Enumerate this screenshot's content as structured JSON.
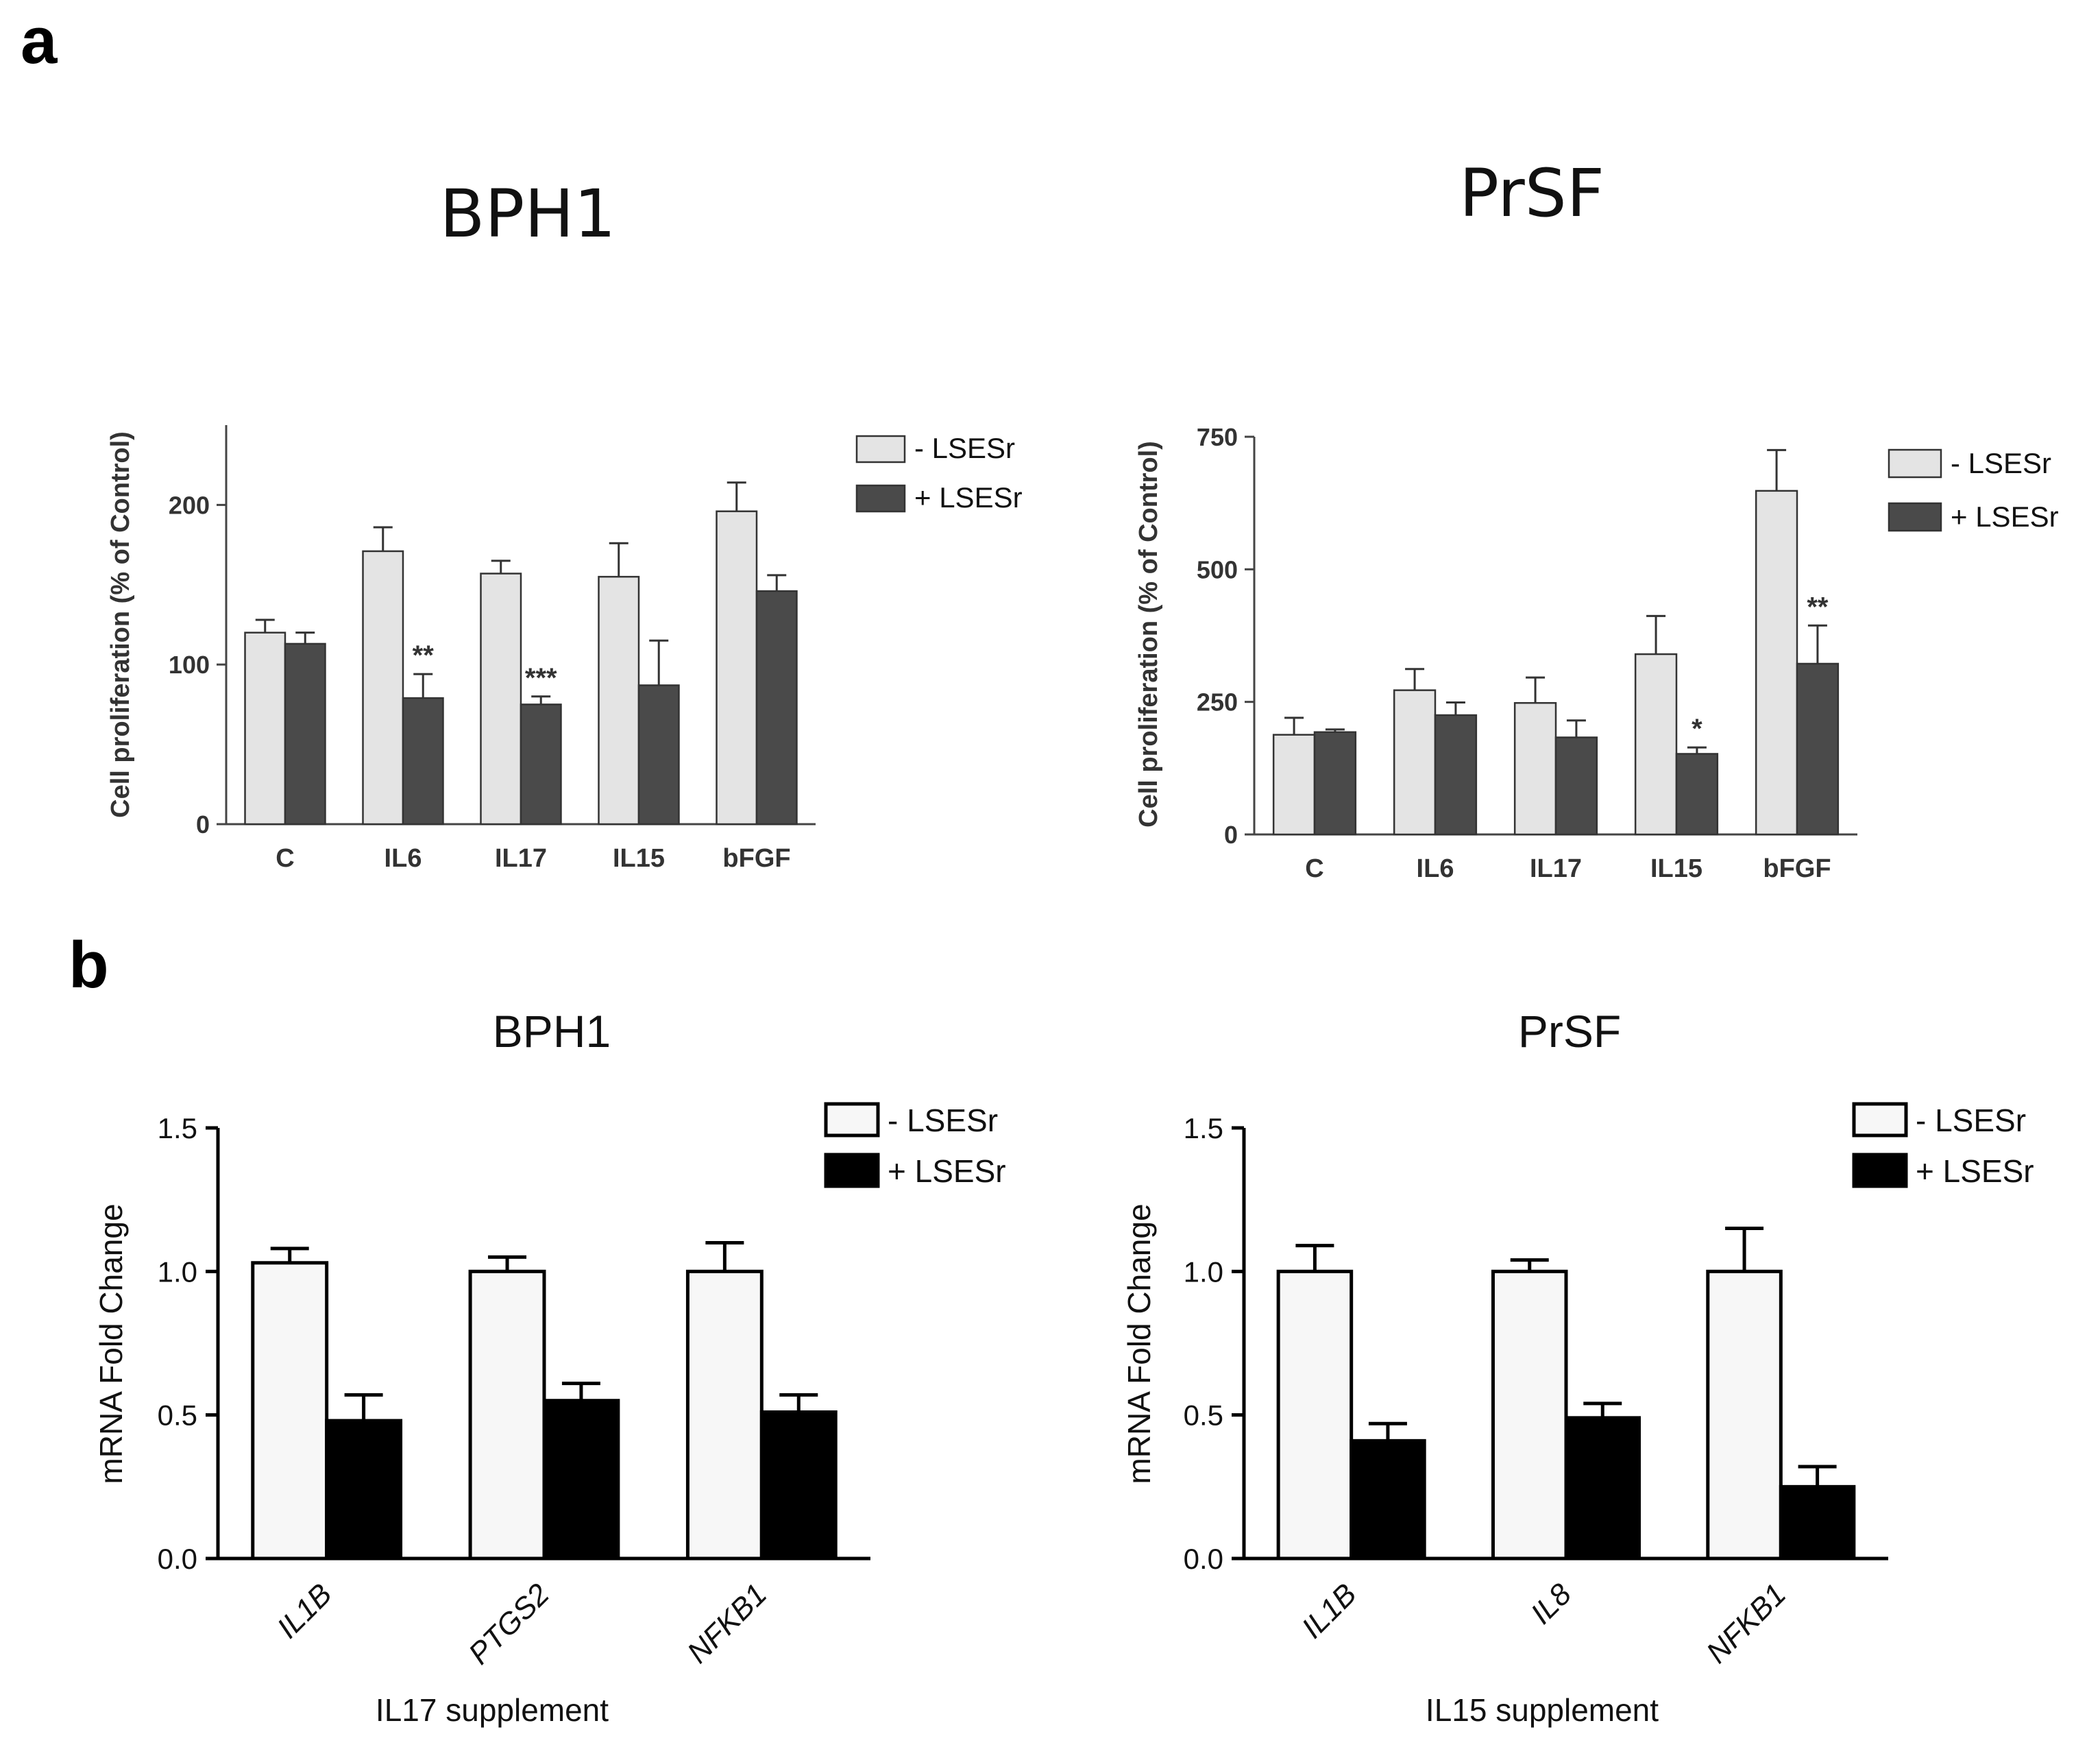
{
  "figure": {
    "panel_labels": [
      "a",
      "b"
    ]
  },
  "chart_data": [
    {
      "id": "a1",
      "type": "bar",
      "panel": "a",
      "title": "BPH1",
      "xlabel": "",
      "ylabel": "Cell proliferation (% of Control)",
      "ylim": [
        0,
        250
      ],
      "yticks": [
        0,
        100,
        200
      ],
      "categories": [
        "C",
        "IL6",
        "IL17",
        "IL15",
        "bFGF"
      ],
      "series": [
        {
          "name": "-  LSESr",
          "fill": "#e4e4e4",
          "values": [
            120,
            171,
            157,
            155,
            196
          ],
          "errors": [
            8,
            15,
            8,
            21,
            18
          ]
        },
        {
          "name": "+ LSESr",
          "fill": "#4a4a4a",
          "values": [
            113,
            79,
            75,
            87,
            146
          ],
          "errors": [
            7,
            15,
            5,
            28,
            10
          ]
        }
      ],
      "significance": [
        {
          "category": "IL6",
          "series": 1,
          "label": "**"
        },
        {
          "category": "IL17",
          "series": 1,
          "label": "***"
        }
      ]
    },
    {
      "id": "a2",
      "type": "bar",
      "panel": "a",
      "title": "PrSF",
      "xlabel": "",
      "ylabel": "Cell proliferation (% of Control)",
      "ylim": [
        0,
        750
      ],
      "yticks": [
        0,
        250,
        500,
        750
      ],
      "categories": [
        "C",
        "IL6",
        "IL17",
        "IL15",
        "bFGF"
      ],
      "series": [
        {
          "name": "-  LSESr",
          "fill": "#e4e4e4",
          "values": [
            188,
            272,
            248,
            340,
            648
          ],
          "errors": [
            32,
            40,
            48,
            72,
            77
          ]
        },
        {
          "name": "+ LSESr",
          "fill": "#4a4a4a",
          "values": [
            193,
            225,
            183,
            152,
            322
          ],
          "errors": [
            5,
            24,
            32,
            12,
            72
          ]
        }
      ],
      "significance": [
        {
          "category": "IL15",
          "series": 1,
          "label": "*"
        },
        {
          "category": "bFGF",
          "series": 1,
          "label": "**"
        }
      ]
    },
    {
      "id": "b1",
      "type": "bar",
      "panel": "b",
      "title": "BPH1",
      "xlabel": "IL17 supplement",
      "ylabel": "mRNA Fold Change",
      "ylim": [
        0,
        1.5
      ],
      "yticks": [
        "0.0",
        "0.5",
        "1.0",
        "1.5"
      ],
      "categories": [
        "IL1B",
        "PTGS2",
        "NFKB1"
      ],
      "series": [
        {
          "name": "- LSESr",
          "fill": "#f7f7f7",
          "values": [
            1.03,
            1.0,
            1.0
          ],
          "errors": [
            0.05,
            0.05,
            0.1
          ]
        },
        {
          "name": "+ LSESr",
          "fill": "#000000",
          "values": [
            0.48,
            0.55,
            0.51
          ],
          "errors": [
            0.09,
            0.06,
            0.06
          ]
        }
      ]
    },
    {
      "id": "b2",
      "type": "bar",
      "panel": "b",
      "title": "PrSF",
      "xlabel": "IL15 supplement",
      "ylabel": "mRNA Fold Change",
      "ylim": [
        0,
        1.5
      ],
      "yticks": [
        "0.0",
        "0.5",
        "1.0",
        "1.5"
      ],
      "categories": [
        "IL1B",
        "IL8",
        "NFKB1"
      ],
      "series": [
        {
          "name": "- LSESr",
          "fill": "#f7f7f7",
          "values": [
            1.0,
            1.0,
            1.0
          ],
          "errors": [
            0.09,
            0.04,
            0.15
          ]
        },
        {
          "name": "+ LSESr",
          "fill": "#000000",
          "values": [
            0.41,
            0.49,
            0.25
          ],
          "errors": [
            0.06,
            0.05,
            0.07
          ]
        }
      ]
    }
  ]
}
